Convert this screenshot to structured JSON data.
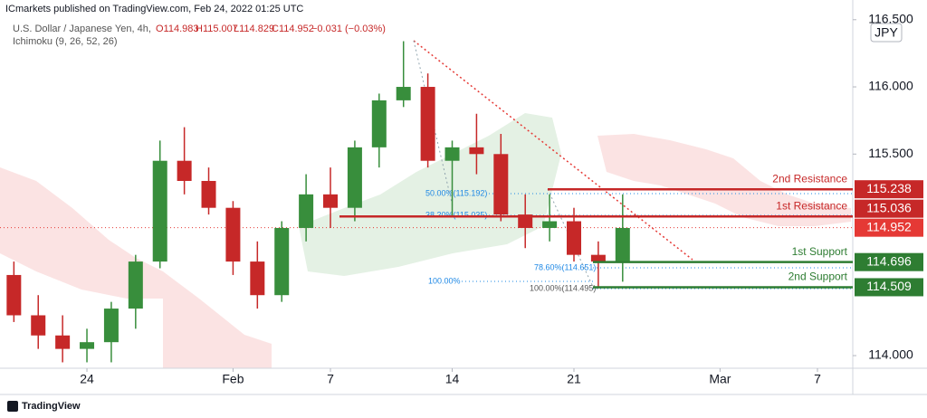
{
  "header": {
    "publisher": "ICmarkets published on TradingView.com, Feb 24, 2022 01:25 UTC",
    "symbol": "U.S. Dollar / Japanese Yen, 4h,",
    "ohlc": [
      "O114.983",
      "H115.007",
      "L114.829",
      "C114.952",
      "−0.031 (−0.03%)"
    ],
    "indicator": "Ichimoku (9, 26, 52, 26)",
    "currency": "JPY",
    "footer": "TradingView"
  },
  "chart_data": {
    "type": "candlestick",
    "x": [
      -3,
      -2,
      -1,
      0,
      1,
      2,
      3,
      4,
      5,
      6,
      7,
      8,
      9,
      10,
      11,
      12,
      13,
      14,
      15,
      16,
      17,
      18,
      19,
      20,
      21,
      22
    ],
    "open": [
      114.6,
      114.3,
      114.15,
      114.05,
      114.1,
      114.35,
      114.7,
      115.45,
      115.3,
      115.1,
      114.7,
      114.45,
      114.95,
      115.2,
      115.1,
      115.55,
      115.9,
      116.0,
      115.45,
      115.55,
      115.5,
      115.05,
      114.95,
      115.0,
      114.75,
      114.7
    ],
    "high": [
      114.7,
      114.45,
      114.3,
      114.2,
      114.4,
      114.75,
      115.6,
      115.7,
      115.4,
      115.15,
      114.85,
      115.0,
      115.35,
      115.4,
      115.6,
      115.95,
      116.34,
      116.1,
      115.6,
      115.8,
      115.65,
      115.2,
      115.2,
      115.1,
      114.85,
      115.2
    ],
    "low": [
      114.25,
      114.05,
      113.95,
      113.95,
      113.95,
      114.2,
      114.65,
      115.2,
      115.05,
      114.6,
      114.35,
      114.4,
      114.85,
      114.95,
      115.0,
      115.4,
      115.85,
      115.4,
      115.03,
      115.35,
      115.0,
      114.8,
      114.85,
      114.7,
      114.5,
      114.55
    ],
    "close": [
      114.3,
      114.15,
      114.05,
      114.1,
      114.35,
      114.7,
      115.45,
      115.3,
      115.1,
      114.7,
      114.45,
      114.95,
      115.2,
      115.1,
      115.55,
      115.9,
      116.0,
      115.45,
      115.55,
      115.5,
      115.05,
      114.95,
      115.0,
      114.75,
      114.7,
      114.95
    ],
    "up_color": "#388e3c",
    "down_color": "#c62828",
    "xlim": [
      -3.57,
      31.45
    ],
    "xticks": [
      {
        "value": 0,
        "label": "24"
      },
      {
        "value": 6,
        "label": "Feb"
      },
      {
        "value": 10,
        "label": "7"
      },
      {
        "value": 15,
        "label": "14"
      },
      {
        "value": 20,
        "label": "21"
      },
      {
        "value": 26,
        "label": "Mar"
      },
      {
        "value": 30,
        "label": "7"
      }
    ],
    "ylim": [
      113.906,
      116.512
    ],
    "yticks": [
      {
        "value": 114,
        "label": "114.000"
      },
      {
        "value": 115.5,
        "label": "115.500"
      },
      {
        "value": 116,
        "label": "116.000"
      },
      {
        "value": 116.5,
        "label": "116.500"
      }
    ],
    "levels": [
      {
        "name": "2nd Resistance",
        "value": 115.238,
        "color": "#c62828"
      },
      {
        "name": "1st Resistance",
        "value": 115.036,
        "color": "#c62828"
      },
      {
        "name": "1st Support",
        "value": 114.696,
        "color": "#2e7d32"
      },
      {
        "name": "2nd Support",
        "value": 114.509,
        "color": "#2e7d32"
      }
    ],
    "last_price": {
      "value": 114.952,
      "color": "#e53935"
    },
    "fib_labels": [
      "50.00%(115.192)",
      "38.20%(115.035)",
      "78.60%(114.651)",
      "100.00%",
      "100.00%(114.495)"
    ]
  }
}
